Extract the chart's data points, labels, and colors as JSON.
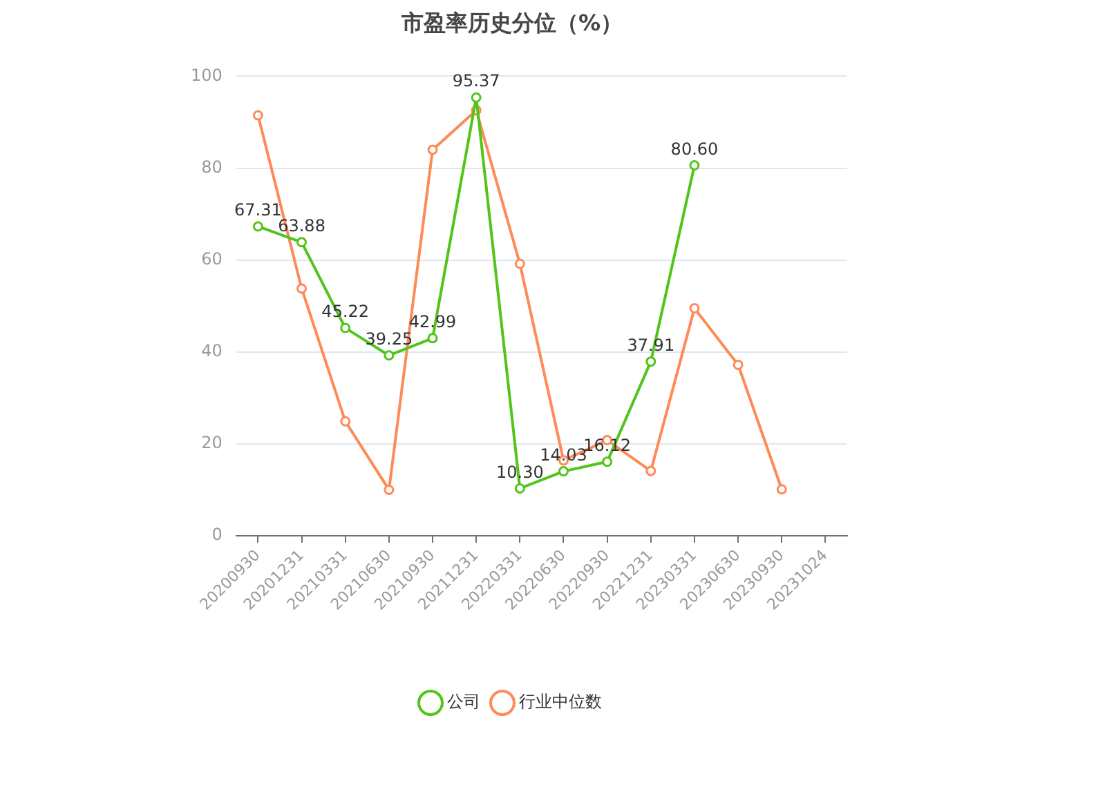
{
  "chart_data": {
    "type": "line",
    "title": "市盈率历史分位（%）",
    "categories": [
      "20200930",
      "20201231",
      "20210331",
      "20210630",
      "20210930",
      "20211231",
      "20220331",
      "20220630",
      "20220930",
      "20221231",
      "20230331",
      "20230630",
      "20230930",
      "20231024"
    ],
    "series": [
      {
        "name": "公司",
        "color": "#52c41a",
        "values": [
          67.31,
          63.88,
          45.22,
          39.25,
          42.99,
          95.37,
          10.3,
          14.03,
          16.12,
          37.91,
          80.6,
          null,
          null,
          null
        ],
        "value_labels": [
          "67.31",
          "63.88",
          "45.22",
          "39.25",
          "42.99",
          "95.37",
          "10.30",
          "14.03",
          "16.12",
          "37.91",
          "80.60",
          null,
          null,
          null
        ]
      },
      {
        "name": "行业中位数",
        "color": "#ff8a57",
        "values": [
          91.5,
          53.8,
          24.9,
          10.0,
          84.0,
          92.6,
          59.2,
          16.4,
          20.8,
          14.1,
          49.5,
          37.2,
          10.1,
          null
        ]
      }
    ],
    "ylim": [
      0,
      100
    ],
    "yticks": [
      0,
      20,
      40,
      60,
      80,
      100
    ],
    "grid": "y",
    "legend": "bottom",
    "marker": "circle"
  }
}
